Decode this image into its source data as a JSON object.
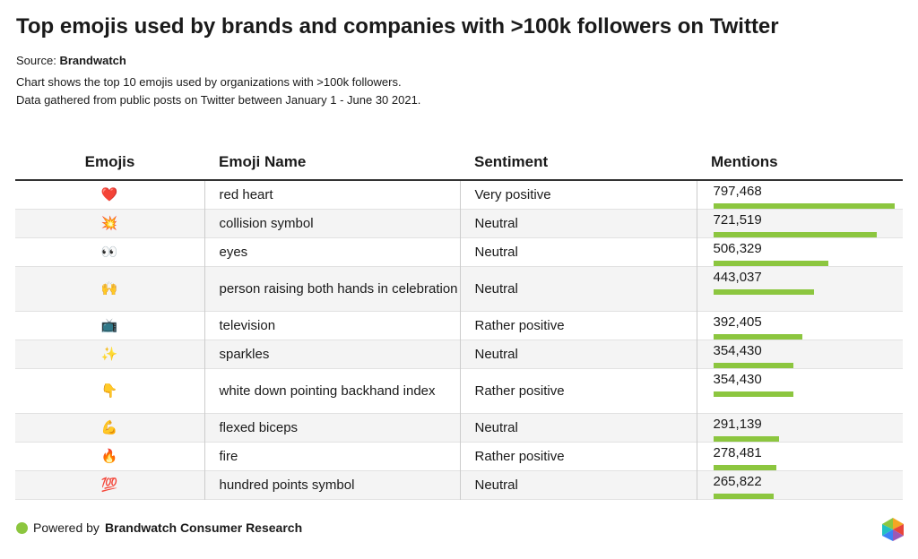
{
  "header": {
    "title": "Top emojis used by brands and companies with >100k followers on Twitter",
    "source_label": "Source:",
    "source": "Brandwatch",
    "description": [
      "Chart shows the top 10 emojis used by organizations with >100k followers.",
      "Data gathered from public posts on Twitter between January 1 - June 30 2021."
    ]
  },
  "table": {
    "columns": [
      "Emojis",
      "Emoji Name",
      "Sentiment",
      "Mentions"
    ],
    "bar_color": "#8cc63f",
    "rows": [
      {
        "emoji": "❤️",
        "name": "red heart",
        "sentiment": "Very positive",
        "mentions": 797468,
        "mentions_label": "797,468"
      },
      {
        "emoji": "💥",
        "name": "collision symbol",
        "sentiment": "Neutral",
        "mentions": 721519,
        "mentions_label": "721,519"
      },
      {
        "emoji": "👀",
        "name": "eyes",
        "sentiment": "Neutral",
        "mentions": 506329,
        "mentions_label": "506,329"
      },
      {
        "emoji": "🙌",
        "name": "person raising both hands in celebration",
        "sentiment": "Neutral",
        "mentions": 443037,
        "mentions_label": "443,037"
      },
      {
        "emoji": "📺",
        "name": "television",
        "sentiment": "Rather positive",
        "mentions": 392405,
        "mentions_label": "392,405"
      },
      {
        "emoji": "✨",
        "name": "sparkles",
        "sentiment": "Neutral",
        "mentions": 354430,
        "mentions_label": "354,430"
      },
      {
        "emoji": "👇",
        "name": "white down pointing backhand index",
        "sentiment": "Rather positive",
        "mentions": 354430,
        "mentions_label": "354,430"
      },
      {
        "emoji": "💪",
        "name": "flexed biceps",
        "sentiment": "Neutral",
        "mentions": 291139,
        "mentions_label": "291,139"
      },
      {
        "emoji": "🔥",
        "name": "fire",
        "sentiment": "Rather positive",
        "mentions": 278481,
        "mentions_label": "278,481"
      },
      {
        "emoji": "💯",
        "name": "hundred points symbol",
        "sentiment": "Neutral",
        "mentions": 265822,
        "mentions_label": "265,822"
      }
    ]
  },
  "footer": {
    "prefix": "Powered by",
    "brand": "Brandwatch Consumer Research"
  }
}
